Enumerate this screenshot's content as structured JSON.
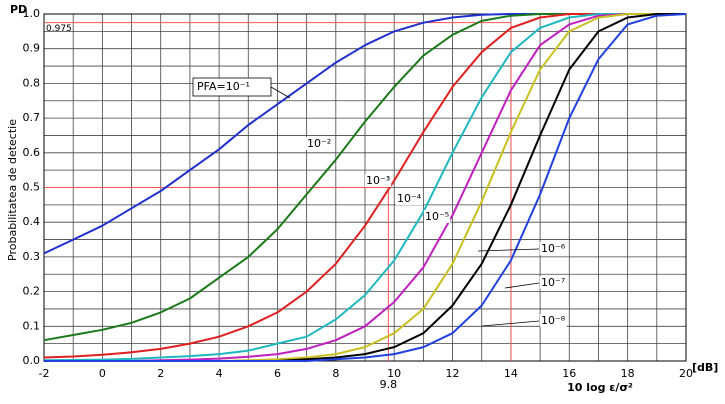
{
  "chart_data": {
    "type": "line",
    "ylabel_short": "PD",
    "ylabel": "Probabilitatea de detectie",
    "xlabel": "10 log ε/σ²",
    "x_unit": "[dB]",
    "x": [
      -2,
      -1,
      0,
      1,
      2,
      3,
      4,
      5,
      6,
      7,
      8,
      9,
      10,
      11,
      12,
      13,
      14,
      15,
      16,
      17,
      18,
      19,
      20
    ],
    "series": [
      {
        "name": "PFA=10⁻¹",
        "color": "#2030d0",
        "values": [
          0.31,
          0.35,
          0.39,
          0.44,
          0.49,
          0.55,
          0.61,
          0.68,
          0.74,
          0.8,
          0.86,
          0.91,
          0.95,
          0.975,
          0.99,
          0.998,
          1,
          1,
          1,
          1,
          1,
          1,
          1
        ]
      },
      {
        "name": "10⁻²",
        "color": "#1a7a1a",
        "values": [
          0.06,
          0.075,
          0.09,
          0.11,
          0.14,
          0.18,
          0.24,
          0.3,
          0.38,
          0.48,
          0.58,
          0.69,
          0.79,
          0.88,
          0.94,
          0.98,
          0.995,
          1,
          1,
          1,
          1,
          1,
          1
        ]
      },
      {
        "name": "10⁻³",
        "color": "#e02020",
        "values": [
          0.01,
          0.013,
          0.018,
          0.025,
          0.035,
          0.05,
          0.07,
          0.1,
          0.14,
          0.2,
          0.28,
          0.39,
          0.52,
          0.66,
          0.79,
          0.89,
          0.96,
          0.99,
          1,
          1,
          1,
          1,
          1
        ]
      },
      {
        "name": "10⁻⁴",
        "color": "#20b8c0",
        "values": [
          0.002,
          0.003,
          0.004,
          0.006,
          0.01,
          0.014,
          0.02,
          0.03,
          0.05,
          0.07,
          0.12,
          0.19,
          0.29,
          0.43,
          0.6,
          0.76,
          0.89,
          0.96,
          0.99,
          1,
          1,
          1,
          1
        ]
      },
      {
        "name": "10⁻⁵",
        "color": "#c020c0",
        "values": [
          0,
          0,
          0,
          0,
          0.002,
          0.004,
          0.007,
          0.012,
          0.02,
          0.035,
          0.06,
          0.1,
          0.17,
          0.27,
          0.42,
          0.6,
          0.78,
          0.91,
          0.97,
          0.995,
          1,
          1,
          1
        ]
      },
      {
        "name": "10⁻⁶",
        "color": "#c8c020",
        "values": [
          0,
          0,
          0,
          0,
          0,
          0,
          0,
          0.002,
          0.005,
          0.01,
          0.02,
          0.04,
          0.08,
          0.15,
          0.28,
          0.46,
          0.66,
          0.84,
          0.95,
          0.99,
          1,
          1,
          1
        ]
      },
      {
        "name": "10⁻⁷",
        "color": "#000000",
        "values": [
          0,
          0,
          0,
          0,
          0,
          0,
          0,
          0,
          0,
          0.005,
          0.01,
          0.02,
          0.04,
          0.08,
          0.16,
          0.28,
          0.45,
          0.65,
          0.84,
          0.95,
          0.99,
          1,
          1
        ]
      },
      {
        "name": "10⁻⁸",
        "color": "#2040e0",
        "values": [
          0,
          0,
          0,
          0,
          0,
          0,
          0,
          0,
          0,
          0,
          0.005,
          0.01,
          0.02,
          0.04,
          0.08,
          0.16,
          0.29,
          0.48,
          0.7,
          0.87,
          0.97,
          0.995,
          1
        ]
      }
    ],
    "xlim": [
      -2,
      20
    ],
    "ylim": [
      0,
      1
    ],
    "xticks": [
      -2,
      0,
      2,
      4,
      6,
      8,
      10,
      12,
      14,
      16,
      18,
      20
    ],
    "yticks": [
      {
        "value": 0,
        "label": "0.0"
      },
      0.1,
      0.2,
      0.3,
      0.4,
      0.5,
      0.6,
      0.7,
      0.8,
      0.9,
      {
        "value": 1,
        "label": "1.0"
      }
    ],
    "x_minor_grid": [
      -1,
      1,
      3,
      5,
      7,
      9,
      11,
      13,
      15,
      17,
      19
    ],
    "y_minor_grid": [
      0.05,
      0.15,
      0.25,
      0.35,
      0.45,
      0.55,
      0.65,
      0.75,
      0.85,
      0.95
    ],
    "grid": true,
    "reference_color": "#ff5050",
    "reference_lines": [
      {
        "x": 9.8,
        "y": 0.5,
        "x_label": "9.8"
      },
      {
        "x": 14,
        "y": 0.975,
        "y_label": "0.975"
      }
    ]
  }
}
